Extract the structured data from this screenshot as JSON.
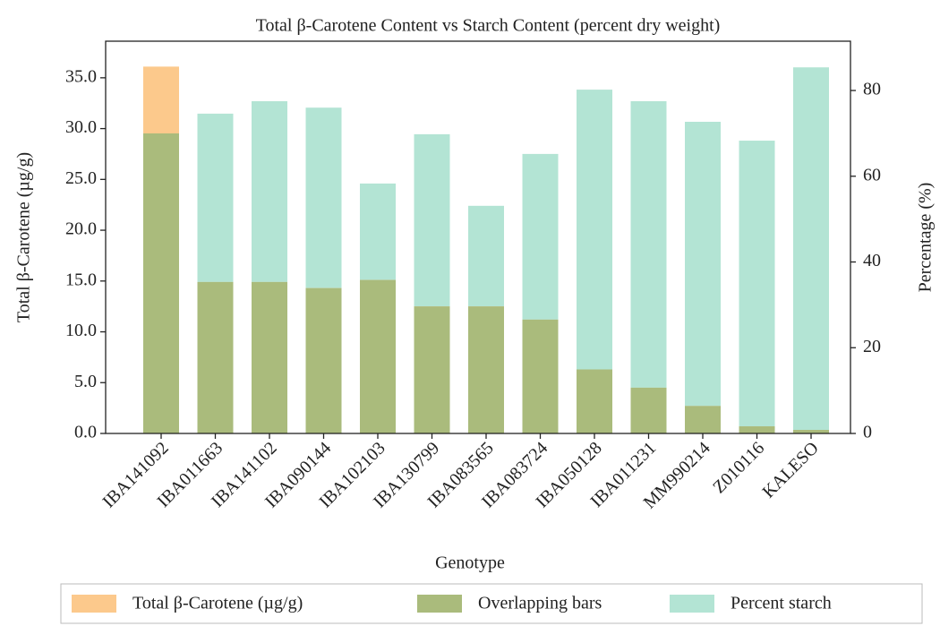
{
  "chart_data": {
    "type": "bar",
    "title": "Total β-Carotene Content vs Starch Content (percent dry weight)",
    "xlabel": "Genotype",
    "ylabel": "Total β-Carotene (µg/g)",
    "y2label": "Percentage (%)",
    "categories": [
      "IBA141092",
      "IBA011663",
      "IBA141102",
      "IBA090144",
      "IBA102103",
      "IBA130799",
      "IBA083565",
      "IBA083724",
      "IBA050128",
      "IBA011231",
      "MM990214",
      "Z010116",
      "KALESO"
    ],
    "series": [
      {
        "name": "Total β-Carotene (µg/g)",
        "color": "#fcc98c",
        "values": [
          36.1,
          14.9,
          14.9,
          14.3,
          15.1,
          12.5,
          12.5,
          11.2,
          6.3,
          4.5,
          2.7,
          0.7,
          0.35
        ]
      },
      {
        "name": "Percent starch",
        "color": "#b3e4d4",
        "axis": "y2",
        "values": [
          70.0,
          74.6,
          77.5,
          76.0,
          58.3,
          69.8,
          53.1,
          65.2,
          80.2,
          77.5,
          72.7,
          68.3,
          85.4
        ]
      }
    ],
    "overlap": {
      "name": "Overlapping bars",
      "color": "#aabb7c"
    },
    "ylim": [
      0,
      38.6
    ],
    "yticks": [
      {
        "value": 0,
        "label": "0.0"
      },
      {
        "value": 5,
        "label": "5.0"
      },
      {
        "value": 10,
        "label": "10.0"
      },
      {
        "value": 15,
        "label": "15.0"
      },
      {
        "value": 20,
        "label": "20.0"
      },
      {
        "value": 25,
        "label": "25.0"
      },
      {
        "value": 30,
        "label": "30.0"
      },
      {
        "value": 35,
        "label": "35.0"
      }
    ],
    "y2lim": [
      0,
      91.5
    ],
    "y2ticks": [
      0,
      20,
      40,
      60,
      80
    ]
  }
}
